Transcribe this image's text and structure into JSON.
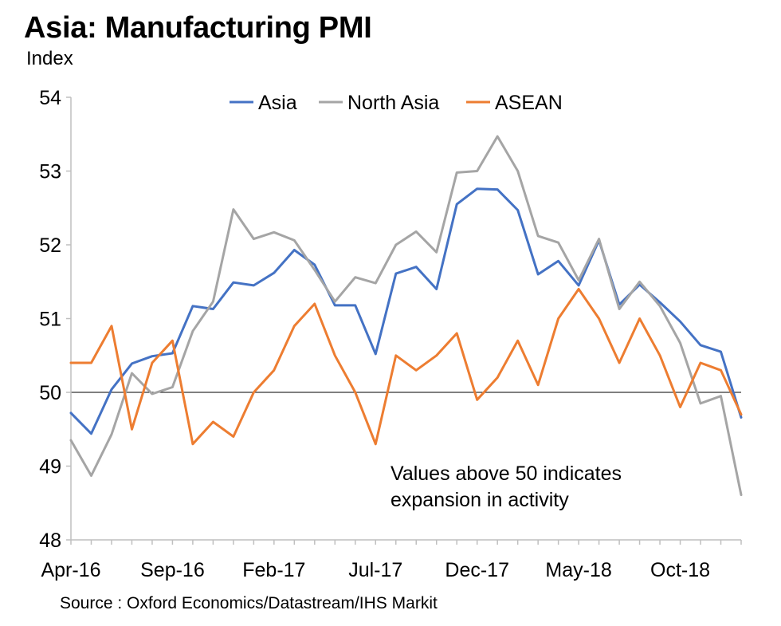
{
  "title": "Asia: Manufacturing PMI",
  "subtitle": "Index",
  "source": "Source : Oxford Economics/Datastream/IHS Markit",
  "annotation": {
    "line1": "Values above 50 indicates",
    "line2": "expansion in activity"
  },
  "chart_data": {
    "type": "line",
    "x": [
      "Apr-16",
      "May-16",
      "Jun-16",
      "Jul-16",
      "Aug-16",
      "Sep-16",
      "Oct-16",
      "Nov-16",
      "Dec-16",
      "Jan-17",
      "Feb-17",
      "Mar-17",
      "Apr-17",
      "May-17",
      "Jun-17",
      "Jul-17",
      "Aug-17",
      "Sep-17",
      "Oct-17",
      "Nov-17",
      "Dec-17",
      "Jan-18",
      "Feb-18",
      "Mar-18",
      "Apr-18",
      "May-18",
      "Jun-18",
      "Jul-18",
      "Aug-18",
      "Sep-18",
      "Oct-18",
      "Nov-18",
      "Dec-18",
      "Jan-19"
    ],
    "x_tick_labels": [
      "Apr-16",
      "Sep-16",
      "Feb-17",
      "Jul-17",
      "Dec-17",
      "May-18",
      "Oct-18"
    ],
    "ylim": [
      48,
      54
    ],
    "yticks": [
      48,
      49,
      50,
      51,
      52,
      53,
      54
    ],
    "reference_line": 50,
    "legend_position": "top-center",
    "series": [
      {
        "name": "Asia",
        "color": "#4472C4",
        "values": [
          49.72,
          49.44,
          50.04,
          50.39,
          50.49,
          50.53,
          51.17,
          51.13,
          51.49,
          51.45,
          51.62,
          51.93,
          51.73,
          51.18,
          51.18,
          50.52,
          51.61,
          51.7,
          51.4,
          52.55,
          52.76,
          52.75,
          52.47,
          51.6,
          51.78,
          51.45,
          52.06,
          51.19,
          51.46,
          51.22,
          50.96,
          50.64,
          50.55,
          49.66
        ]
      },
      {
        "name": "North Asia",
        "color": "#A5A5A5",
        "values": [
          49.35,
          48.87,
          49.43,
          50.26,
          49.98,
          50.07,
          50.83,
          51.23,
          52.48,
          52.08,
          52.17,
          52.06,
          51.66,
          51.23,
          51.56,
          51.48,
          52.0,
          52.18,
          51.9,
          52.98,
          53.0,
          53.47,
          53.0,
          52.12,
          52.03,
          51.52,
          52.08,
          51.13,
          51.5,
          51.17,
          50.67,
          49.85,
          49.95,
          48.61
        ]
      },
      {
        "name": "ASEAN",
        "color": "#ED7D31",
        "values": [
          50.4,
          50.4,
          50.9,
          49.5,
          50.4,
          50.7,
          49.3,
          49.6,
          49.4,
          50.0,
          50.3,
          50.9,
          51.2,
          50.5,
          50.0,
          49.3,
          50.5,
          50.3,
          50.5,
          50.8,
          49.9,
          50.2,
          50.7,
          50.1,
          51.0,
          51.4,
          51.0,
          50.4,
          51.0,
          50.5,
          49.8,
          50.4,
          50.3,
          49.7
        ]
      }
    ]
  }
}
